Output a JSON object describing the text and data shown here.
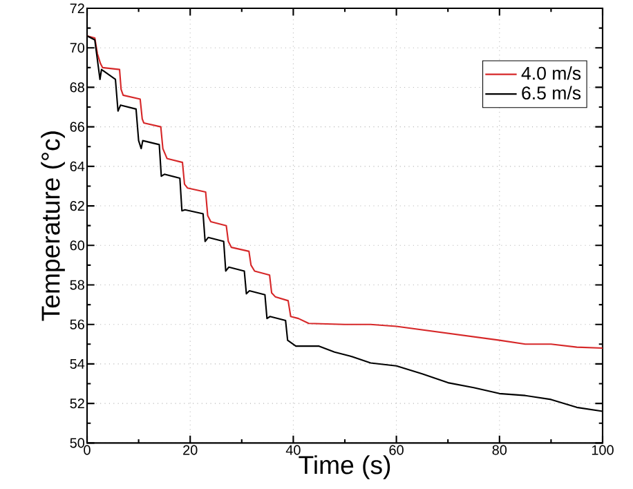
{
  "chart_data": {
    "type": "line",
    "xlabel": "Time (s)",
    "ylabel": "Temperature (°c)",
    "xlim": [
      0,
      100
    ],
    "ylim": [
      50,
      72
    ],
    "xticks": [
      0,
      20,
      40,
      60,
      80,
      100
    ],
    "yticks": [
      50,
      52,
      54,
      56,
      58,
      60,
      62,
      64,
      66,
      68,
      70,
      72
    ],
    "grid": true,
    "legend": "top right",
    "line_style": "solid",
    "marker": "none",
    "series": [
      {
        "name": "4.0 m/s",
        "color": "#d62728",
        "x": [
          0,
          1.5,
          2,
          2.6,
          3,
          6.3,
          6.6,
          7,
          10.3,
          10.7,
          11,
          14.3,
          14.7,
          15.5,
          18.5,
          18.9,
          19.5,
          23,
          23.4,
          24,
          27,
          27.4,
          28,
          31.4,
          31.8,
          32.5,
          35.4,
          35.8,
          36.5,
          39,
          39.5,
          41,
          43,
          50,
          55,
          60,
          70,
          80,
          85,
          90,
          95,
          100
        ],
        "values": [
          70.6,
          70.5,
          69.7,
          69.2,
          69.0,
          68.9,
          67.9,
          67.6,
          67.4,
          66.4,
          66.2,
          66.0,
          64.9,
          64.4,
          64.2,
          63.1,
          62.9,
          62.7,
          61.5,
          61.2,
          61.0,
          60.2,
          59.9,
          59.7,
          59.0,
          58.7,
          58.5,
          57.6,
          57.4,
          57.2,
          56.4,
          56.3,
          56.05,
          56.0,
          56.0,
          55.9,
          55.55,
          55.2,
          55.0,
          55.0,
          54.85,
          54.8
        ]
      },
      {
        "name": "6.5 m/s",
        "color": "#000000",
        "x": [
          0,
          1.5,
          2,
          2.5,
          2.8,
          5.5,
          6,
          6.5,
          9.5,
          10,
          10.5,
          10.8,
          14,
          14.4,
          15,
          18,
          18.4,
          19,
          22.5,
          22.9,
          23.5,
          26.5,
          26.9,
          27.5,
          30.5,
          30.9,
          31.5,
          34.5,
          34.9,
          35.5,
          38.5,
          38.9,
          40.5,
          42,
          45,
          48,
          51,
          55,
          60,
          65,
          70,
          75,
          80,
          85,
          90,
          95,
          100
        ],
        "values": [
          70.6,
          70.4,
          69.4,
          68.4,
          68.9,
          68.4,
          66.8,
          67.1,
          66.9,
          65.3,
          64.9,
          65.3,
          65.1,
          63.5,
          63.6,
          63.4,
          61.75,
          61.8,
          61.6,
          60.2,
          60.4,
          60.2,
          58.7,
          58.9,
          58.7,
          57.55,
          57.7,
          57.5,
          56.3,
          56.4,
          56.2,
          55.2,
          54.9,
          54.9,
          54.9,
          54.6,
          54.4,
          54.05,
          53.9,
          53.5,
          53.05,
          52.8,
          52.5,
          52.4,
          52.2,
          51.8,
          51.6
        ]
      }
    ]
  }
}
